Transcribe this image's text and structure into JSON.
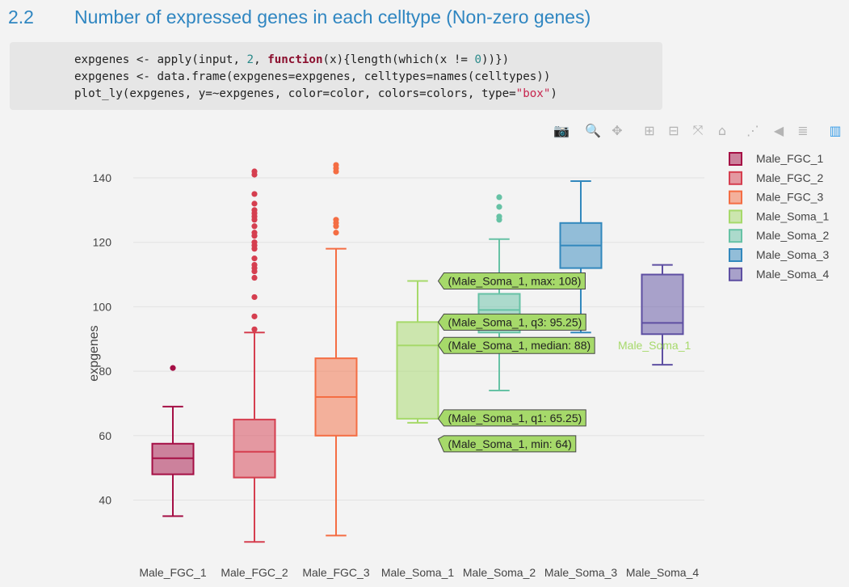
{
  "heading": {
    "number": "2.2",
    "title": "Number of expressed genes in each celltype (Non-zero genes)"
  },
  "code": {
    "line1": {
      "a": "expgenes <- apply(input, ",
      "n1": "2",
      "b": ", ",
      "kw": "function",
      "c": "(x){length(which(x != ",
      "n2": "0",
      "d": "))})"
    },
    "line2": "expgenes <- data.frame(expgenes=expgenes, celltypes=names(celltypes))",
    "line3": {
      "a": "plot_ly(expgenes, y=~expgenes, color=color, colors=colors, type=",
      "s": "\"box\"",
      "b": ")"
    }
  },
  "modebar": {
    "icons": [
      "camera-icon",
      "zoom-icon",
      "pan-icon",
      "zoom-in-icon",
      "zoom-out-icon",
      "autoscale-icon",
      "reset-axes-icon",
      "spike-lines-icon",
      "hover-closest-icon",
      "hover-compare-icon",
      "plotly-logo-icon"
    ],
    "glyphs": [
      "📷",
      "🔍",
      "✥",
      "⊞",
      "⊟",
      "⤧",
      "⌂",
      "⋰",
      "◀",
      "≣",
      "▥"
    ]
  },
  "chart_data": {
    "type": "box",
    "xlabel": "",
    "ylabel": "expgenes",
    "ylim": [
      30,
      147
    ],
    "yticks": [
      40,
      60,
      80,
      100,
      120,
      140
    ],
    "grid": true,
    "legend_position": "top-right",
    "categories": [
      "Male_FGC_1",
      "Male_FGC_2",
      "Male_FGC_3",
      "Male_Soma_1",
      "Male_Soma_2",
      "Male_Soma_3",
      "Male_Soma_4"
    ],
    "series": [
      {
        "name": "Male_FGC_1",
        "color": "#a50f45",
        "min": 35,
        "q1": 48,
        "median": 53,
        "q3": 57.5,
        "max": 69,
        "outliers": [
          81
        ]
      },
      {
        "name": "Male_FGC_2",
        "color": "#d53e4f",
        "min": 27,
        "q1": 47,
        "median": 55,
        "q3": 65,
        "max": 92,
        "outliers": [
          93,
          97,
          103,
          109,
          111,
          112,
          113,
          115,
          118,
          119,
          120,
          122,
          123,
          125,
          127,
          128,
          129,
          130,
          132,
          135,
          141,
          142
        ]
      },
      {
        "name": "Male_FGC_3",
        "color": "#f46d43",
        "min": 29,
        "q1": 60,
        "median": 72,
        "q3": 84,
        "max": 118,
        "outliers": [
          123,
          125,
          126,
          127,
          142,
          143,
          144
        ]
      },
      {
        "name": "Male_Soma_1",
        "color": "#a6d96a",
        "min": 64,
        "q1": 65.25,
        "median": 88,
        "q3": 95.25,
        "max": 108,
        "outliers": []
      },
      {
        "name": "Male_Soma_2",
        "color": "#66c2a5",
        "min": 74,
        "q1": 92,
        "median": 99,
        "q3": 104,
        "max": 121,
        "outliers": [
          127,
          128,
          131,
          134
        ]
      },
      {
        "name": "Male_Soma_3",
        "color": "#3288bd",
        "min": 92,
        "q1": 112,
        "median": 119,
        "q3": 126,
        "max": 139,
        "outliers": []
      },
      {
        "name": "Male_Soma_4",
        "color": "#5e4fa2",
        "min": 82,
        "q1": 91.5,
        "median": 95,
        "q3": 110,
        "max": 113,
        "outliers": []
      }
    ],
    "hover": {
      "category": "Male_Soma_1",
      "labels": [
        {
          "stat": "max",
          "value": 108,
          "text": "(Male_Soma_1, max: 108)"
        },
        {
          "stat": "q3",
          "value": 95.25,
          "text": "(Male_Soma_1, q3: 95.25)"
        },
        {
          "stat": "median",
          "value": 88,
          "text": "(Male_Soma_1, median: 88)"
        },
        {
          "stat": "q1",
          "value": 65.25,
          "text": "(Male_Soma_1, q1: 65.25)"
        },
        {
          "stat": "min",
          "value": 64,
          "text": "(Male_Soma_1, min: 64)"
        }
      ],
      "trace_label": "Male_Soma_1"
    }
  }
}
